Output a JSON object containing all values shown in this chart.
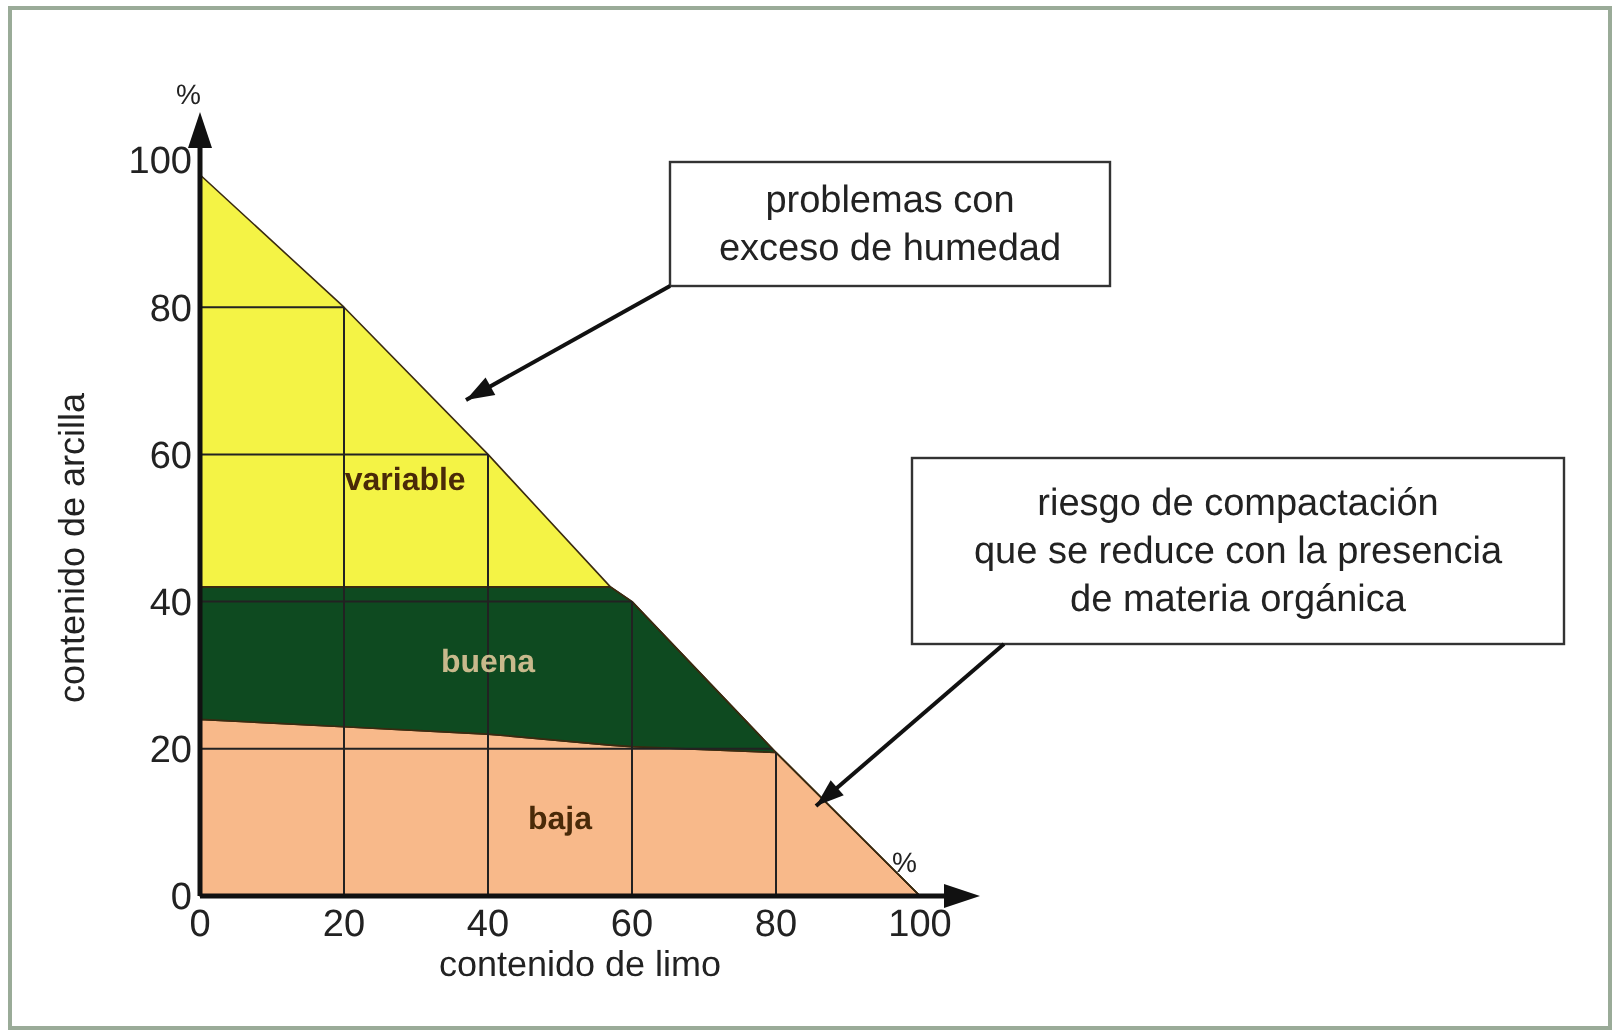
{
  "chart_data": {
    "type": "area",
    "stacked": true,
    "xlabel": "contenido de limo",
    "ylabel": "contenido de arcilla",
    "x": [
      0,
      20,
      40,
      57,
      60,
      80,
      100
    ],
    "series": [
      {
        "name": "baja",
        "color": "#f8b98a",
        "values": [
          24,
          23,
          22,
          20.5,
          20.3,
          19.5,
          0
        ]
      },
      {
        "name": "buena",
        "color": "#0e4a20",
        "values": [
          18,
          19,
          20,
          21.5,
          19.7,
          0,
          0
        ]
      },
      {
        "name": "variable",
        "color": "#f4f345",
        "values": [
          56,
          38,
          18,
          0,
          0,
          0,
          0
        ]
      }
    ],
    "xlim": [
      0,
      100
    ],
    "ylim": [
      0,
      100
    ],
    "xticks": [
      0,
      20,
      40,
      60,
      80,
      100
    ],
    "yticks": [
      0,
      20,
      40,
      60,
      80,
      100
    ],
    "grid": true,
    "annotations": [
      "problemas con\nexceso de humedad",
      "riesgo de compactación\nque se reduce con la presencia\nde materia orgánica",
      "%",
      "%"
    ]
  }
}
